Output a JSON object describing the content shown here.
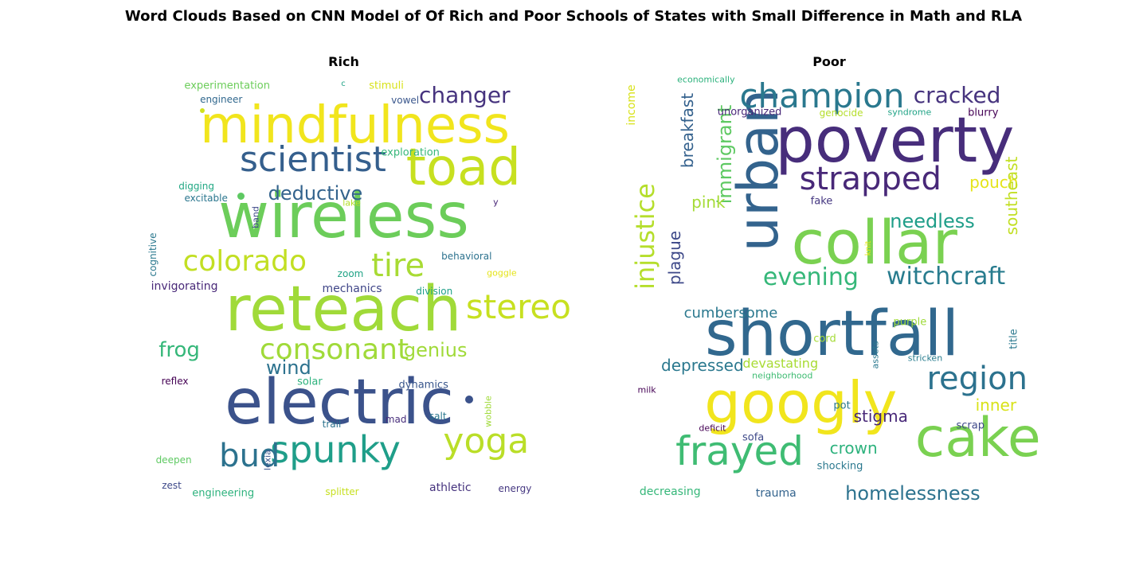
{
  "chart_data": {
    "type": "wordcloud",
    "title": "Word Clouds Based on CNN Model of Of Rich and Poor Schools of States with Small Difference in Math and RLA",
    "panels": [
      {
        "title": "Rich",
        "words": [
          {
            "text": "wireless",
            "x": 0.5,
            "y": 0.338,
            "size": 78,
            "color": "#6ccd5a"
          },
          {
            "text": "reteach",
            "x": 0.499,
            "y": 0.566,
            "size": 78,
            "color": "#a0da39"
          },
          {
            "text": "electric",
            "x": 0.489,
            "y": 0.797,
            "size": 78,
            "color": "#3b528b"
          },
          {
            "text": "mindfulness",
            "x": 0.528,
            "y": 0.113,
            "size": 64,
            "color": "#f1e51d"
          },
          {
            "text": "toad",
            "x": 0.8,
            "y": 0.217,
            "size": 64,
            "color": "#c7e020"
          },
          {
            "text": "scientist",
            "x": 0.423,
            "y": 0.198,
            "size": 44,
            "color": "#355f8d"
          },
          {
            "text": "colorado",
            "x": 0.252,
            "y": 0.449,
            "size": 36,
            "color": "#c2df23"
          },
          {
            "text": "tire",
            "x": 0.636,
            "y": 0.459,
            "size": 40,
            "color": "#a8db34"
          },
          {
            "text": "stereo",
            "x": 0.938,
            "y": 0.561,
            "size": 42,
            "color": "#c7e020"
          },
          {
            "text": "consonant",
            "x": 0.476,
            "y": 0.667,
            "size": 36,
            "color": "#a0da39"
          },
          {
            "text": "spunky",
            "x": 0.479,
            "y": 0.912,
            "size": 46,
            "color": "#1f9e89"
          },
          {
            "text": "yoga",
            "x": 0.857,
            "y": 0.892,
            "size": 44,
            "color": "#bade28"
          },
          {
            "text": "bud",
            "x": 0.264,
            "y": 0.927,
            "size": 40,
            "color": "#2c728e"
          },
          {
            "text": "changer",
            "x": 0.803,
            "y": 0.039,
            "size": 28,
            "color": "#46337e"
          },
          {
            "text": "deductive",
            "x": 0.429,
            "y": 0.28,
            "size": 24,
            "color": "#33638d"
          },
          {
            "text": "genius",
            "x": 0.73,
            "y": 0.667,
            "size": 24,
            "color": "#a0da39"
          },
          {
            "text": "frog",
            "x": 0.088,
            "y": 0.667,
            "size": 26,
            "color": "#35b779"
          },
          {
            "text": "wind",
            "x": 0.362,
            "y": 0.71,
            "size": 24,
            "color": "#2c728e"
          },
          {
            "text": "experimentation",
            "x": 0.208,
            "y": 0.016,
            "size": 13,
            "color": "#6ccd5a"
          },
          {
            "text": "engineer",
            "x": 0.193,
            "y": 0.049,
            "size": 12,
            "color": "#31688e"
          },
          {
            "text": "c",
            "x": 0.499,
            "y": 0.012,
            "size": 10,
            "color": "#20a386"
          },
          {
            "text": "stimuli",
            "x": 0.607,
            "y": 0.016,
            "size": 13,
            "color": "#d8e219"
          },
          {
            "text": "vowel",
            "x": 0.654,
            "y": 0.051,
            "size": 12,
            "color": "#39568c"
          },
          {
            "text": "exploration",
            "x": 0.667,
            "y": 0.18,
            "size": 13,
            "color": "#35b779"
          },
          {
            "text": "digging",
            "x": 0.131,
            "y": 0.263,
            "size": 12,
            "color": "#22a884"
          },
          {
            "text": "excitable",
            "x": 0.155,
            "y": 0.292,
            "size": 12,
            "color": "#2a768e"
          },
          {
            "text": "lake",
            "x": 0.52,
            "y": 0.304,
            "size": 11,
            "color": "#b5de2b"
          },
          {
            "text": "y",
            "x": 0.881,
            "y": 0.302,
            "size": 11,
            "color": "#482677"
          },
          {
            "text": "band",
            "x": 0.279,
            "y": 0.34,
            "size": 11,
            "color": "#3e4989",
            "rot": -90
          },
          {
            "text": "cognitive",
            "x": 0.021,
            "y": 0.431,
            "size": 12,
            "color": "#2a788e",
            "rot": -90
          },
          {
            "text": "behavioral",
            "x": 0.808,
            "y": 0.435,
            "size": 12,
            "color": "#2c728e"
          },
          {
            "text": "zoom",
            "x": 0.517,
            "y": 0.478,
            "size": 12,
            "color": "#20a386"
          },
          {
            "text": "goggle",
            "x": 0.896,
            "y": 0.476,
            "size": 11,
            "color": "#e5e419"
          },
          {
            "text": "invigorating",
            "x": 0.101,
            "y": 0.51,
            "size": 14,
            "color": "#482878"
          },
          {
            "text": "mechanics",
            "x": 0.521,
            "y": 0.516,
            "size": 14,
            "color": "#404688"
          },
          {
            "text": "division",
            "x": 0.727,
            "y": 0.522,
            "size": 12,
            "color": "#1fa088"
          },
          {
            "text": "reflex",
            "x": 0.077,
            "y": 0.743,
            "size": 12,
            "color": "#440154"
          },
          {
            "text": "solar",
            "x": 0.415,
            "y": 0.745,
            "size": 13,
            "color": "#2db27d"
          },
          {
            "text": "dynamics",
            "x": 0.7,
            "y": 0.753,
            "size": 13,
            "color": "#39568c"
          },
          {
            "text": "trail",
            "x": 0.47,
            "y": 0.849,
            "size": 12,
            "color": "#2c728e"
          },
          {
            "text": "mad",
            "x": 0.631,
            "y": 0.837,
            "size": 12,
            "color": "#472d7b"
          },
          {
            "text": "salt",
            "x": 0.736,
            "y": 0.829,
            "size": 12,
            "color": "#2a788e"
          },
          {
            "text": "wobble",
            "x": 0.862,
            "y": 0.818,
            "size": 11,
            "color": "#a0da39",
            "rot": -90
          },
          {
            "text": "deepen",
            "x": 0.074,
            "y": 0.937,
            "size": 12,
            "color": "#5ec962"
          },
          {
            "text": "lexia",
            "x": 0.309,
            "y": 0.937,
            "size": 11,
            "color": "#39568c",
            "rot": -90
          },
          {
            "text": "zest",
            "x": 0.069,
            "y": 1.0,
            "size": 12,
            "color": "#3e4989"
          },
          {
            "text": "engineering",
            "x": 0.198,
            "y": 1.02,
            "size": 13,
            "color": "#2db27d"
          },
          {
            "text": "splitter",
            "x": 0.496,
            "y": 1.016,
            "size": 12,
            "color": "#c7e020"
          },
          {
            "text": "athletic",
            "x": 0.767,
            "y": 1.006,
            "size": 14,
            "color": "#46337e"
          },
          {
            "text": "energy",
            "x": 0.929,
            "y": 1.008,
            "size": 12,
            "color": "#453781"
          }
        ],
        "dots": [
          {
            "x": 0.146,
            "y": 0.076,
            "d": 6,
            "color": "#d0e11c"
          },
          {
            "x": 0.243,
            "y": 0.288,
            "d": 9,
            "color": "#5ec962"
          },
          {
            "x": 0.815,
            "y": 0.788,
            "d": 10,
            "color": "#3b528b"
          }
        ]
      },
      {
        "title": "Poor",
        "words": [
          {
            "text": "shortfall",
            "x": 0.507,
            "y": 0.627,
            "size": 78,
            "color": "#31688e"
          },
          {
            "text": "poverty",
            "x": 0.664,
            "y": 0.151,
            "size": 78,
            "color": "#472d7b"
          },
          {
            "text": "collar",
            "x": 0.613,
            "y": 0.402,
            "size": 76,
            "color": "#7ad151"
          },
          {
            "text": "googly",
            "x": 0.429,
            "y": 0.796,
            "size": 72,
            "color": "#f1e51d"
          },
          {
            "text": "cake",
            "x": 0.872,
            "y": 0.884,
            "size": 68,
            "color": "#7ad151"
          },
          {
            "text": "urban",
            "x": 0.322,
            "y": 0.224,
            "size": 70,
            "color": "#33638d",
            "rot": -90
          },
          {
            "text": "champion",
            "x": 0.482,
            "y": 0.041,
            "size": 42,
            "color": "#2a788e"
          },
          {
            "text": "strapped",
            "x": 0.603,
            "y": 0.245,
            "size": 40,
            "color": "#482878"
          },
          {
            "text": "frayed",
            "x": 0.276,
            "y": 0.916,
            "size": 50,
            "color": "#3fbc73"
          },
          {
            "text": "region",
            "x": 0.87,
            "y": 0.737,
            "size": 40,
            "color": "#2c728e"
          },
          {
            "text": "evening",
            "x": 0.454,
            "y": 0.488,
            "size": 30,
            "color": "#35b779"
          },
          {
            "text": "witchcraft",
            "x": 0.792,
            "y": 0.487,
            "size": 30,
            "color": "#287c8e"
          },
          {
            "text": "injustice",
            "x": 0.039,
            "y": 0.386,
            "size": 32,
            "color": "#b5de2b",
            "rot": -90
          },
          {
            "text": "cracked",
            "x": 0.82,
            "y": 0.039,
            "size": 28,
            "color": "#46337e"
          },
          {
            "text": "needless",
            "x": 0.758,
            "y": 0.349,
            "size": 24,
            "color": "#1f9e89"
          },
          {
            "text": "homelessness",
            "x": 0.709,
            "y": 1.02,
            "size": 24,
            "color": "#2c728e"
          },
          {
            "text": "immigrant",
            "x": 0.24,
            "y": 0.184,
            "size": 24,
            "color": "#5ec962",
            "rot": -90
          },
          {
            "text": "breakfast",
            "x": 0.146,
            "y": 0.125,
            "size": 20,
            "color": "#34618d",
            "rot": -90
          },
          {
            "text": "plague",
            "x": 0.113,
            "y": 0.439,
            "size": 20,
            "color": "#3e4989",
            "rot": -90
          },
          {
            "text": "pouch",
            "x": 0.912,
            "y": 0.253,
            "size": 20,
            "color": "#e5e419"
          },
          {
            "text": "pink",
            "x": 0.198,
            "y": 0.302,
            "size": 20,
            "color": "#a5db36"
          },
          {
            "text": "southeast",
            "x": 0.957,
            "y": 0.286,
            "size": 20,
            "color": "#c2df23",
            "rot": -90
          },
          {
            "text": "stigma",
            "x": 0.629,
            "y": 0.829,
            "size": 20,
            "color": "#482878"
          },
          {
            "text": "inner",
            "x": 0.917,
            "y": 0.802,
            "size": 20,
            "color": "#d8e219"
          },
          {
            "text": "crown",
            "x": 0.561,
            "y": 0.907,
            "size": 20,
            "color": "#2db27d"
          },
          {
            "text": "depressed",
            "x": 0.183,
            "y": 0.704,
            "size": 20,
            "color": "#2a788e"
          },
          {
            "text": "devastating",
            "x": 0.378,
            "y": 0.7,
            "size": 16,
            "color": "#a8db34"
          },
          {
            "text": "cumbersome",
            "x": 0.254,
            "y": 0.576,
            "size": 18,
            "color": "#2a788e"
          },
          {
            "text": "income",
            "x": 0.005,
            "y": 0.062,
            "size": 14,
            "color": "#d8e219",
            "rot": -90
          },
          {
            "text": "economically",
            "x": 0.192,
            "y": 0.0,
            "size": 11,
            "color": "#2db27d"
          },
          {
            "text": "unorganized",
            "x": 0.301,
            "y": 0.08,
            "size": 13,
            "color": "#482878"
          },
          {
            "text": "genocide",
            "x": 0.53,
            "y": 0.082,
            "size": 12,
            "color": "#b5de2b"
          },
          {
            "text": "syndrome",
            "x": 0.701,
            "y": 0.08,
            "size": 11,
            "color": "#20a386"
          },
          {
            "text": "blurry",
            "x": 0.885,
            "y": 0.082,
            "size": 13,
            "color": "#440154"
          },
          {
            "text": "fake",
            "x": 0.481,
            "y": 0.3,
            "size": 13,
            "color": "#453781"
          },
          {
            "text": "knit",
            "x": 0.6,
            "y": 0.416,
            "size": 10,
            "color": "#e5e419",
            "rot": -90
          },
          {
            "text": "purple",
            "x": 0.702,
            "y": 0.598,
            "size": 13,
            "color": "#9fda3a"
          },
          {
            "text": "cord",
            "x": 0.489,
            "y": 0.639,
            "size": 13,
            "color": "#a5db36"
          },
          {
            "text": "assets",
            "x": 0.615,
            "y": 0.678,
            "size": 11,
            "color": "#2a788e",
            "rot": -90
          },
          {
            "text": "title",
            "x": 0.962,
            "y": 0.639,
            "size": 13,
            "color": "#2a788e",
            "rot": -90
          },
          {
            "text": "stricken",
            "x": 0.74,
            "y": 0.686,
            "size": 11,
            "color": "#287c8e"
          },
          {
            "text": "neighborhood",
            "x": 0.383,
            "y": 0.729,
            "size": 11,
            "color": "#3fbc73"
          },
          {
            "text": "milk",
            "x": 0.044,
            "y": 0.765,
            "size": 11,
            "color": "#440154"
          },
          {
            "text": "pot",
            "x": 0.532,
            "y": 0.804,
            "size": 13,
            "color": "#2a788e"
          },
          {
            "text": "scrap",
            "x": 0.853,
            "y": 0.853,
            "size": 13,
            "color": "#3e4989"
          },
          {
            "text": "deficit",
            "x": 0.208,
            "y": 0.859,
            "size": 11,
            "color": "#440154"
          },
          {
            "text": "sofa",
            "x": 0.31,
            "y": 0.882,
            "size": 13,
            "color": "#3e4989"
          },
          {
            "text": "shocking",
            "x": 0.527,
            "y": 0.953,
            "size": 13,
            "color": "#2a788e"
          },
          {
            "text": "decreasing",
            "x": 0.102,
            "y": 1.016,
            "size": 14,
            "color": "#35b779"
          },
          {
            "text": "trauma",
            "x": 0.367,
            "y": 1.02,
            "size": 14,
            "color": "#33638d"
          }
        ],
        "dots": []
      }
    ]
  }
}
